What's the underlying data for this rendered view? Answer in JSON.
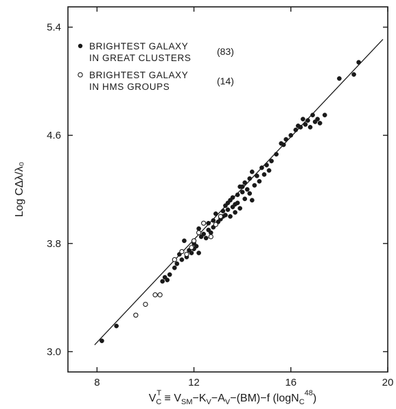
{
  "chart_data": {
    "type": "scatter",
    "title": "",
    "xlabel": "V_C^T ≡ V_SM−K_V−A_V−(BM)−f(logN_C^48)",
    "xlabel_parts": {
      "main": "V",
      "main_sub": "C",
      "main_sup": "T",
      "rest1": " ≡ V",
      "rest1_sub": "SM",
      "rest2": "−K",
      "rest2_sub": "V",
      "rest3": "−A",
      "rest3_sub": "V",
      "rest4": "−(BM)−f (logN",
      "rest4_sub": "C",
      "rest4_sup": "48",
      "rest5": ")"
    },
    "ylabel": "Log CΔλ/λ₀",
    "xlim": [
      6.8,
      20
    ],
    "ylim": [
      2.85,
      5.55
    ],
    "xticks": [
      {
        "value": 8,
        "label": "8"
      },
      {
        "value": 12,
        "label": "12"
      },
      {
        "value": 16,
        "label": "16"
      },
      {
        "value": 20,
        "label": "20"
      }
    ],
    "yticks": [
      {
        "value": 3.0,
        "label": "3.0"
      },
      {
        "value": 3.8,
        "label": "3.8"
      },
      {
        "value": 4.6,
        "label": "4.6"
      },
      {
        "value": 5.4,
        "label": "5.4"
      }
    ],
    "grid": false,
    "legend_position": "top-left",
    "legend": [
      {
        "marker": "filled-circle",
        "line1": "BRIGHTEST GALAXY",
        "line2": "IN GREAT CLUSTERS",
        "count": "(83)"
      },
      {
        "marker": "open-circle",
        "line1": "BRIGHTEST GALAXY",
        "line2": "IN HMS GROUPS",
        "count": "(14)"
      }
    ],
    "fit_line": {
      "x": [
        7.9,
        19.8
      ],
      "y": [
        3.05,
        5.31
      ]
    },
    "series": [
      {
        "marker": "filled-circle",
        "points": [
          [
            8.2,
            3.08
          ],
          [
            8.8,
            3.19
          ],
          [
            10.7,
            3.52
          ],
          [
            10.8,
            3.55
          ],
          [
            10.9,
            3.53
          ],
          [
            11.0,
            3.57
          ],
          [
            11.2,
            3.62
          ],
          [
            11.3,
            3.65
          ],
          [
            11.4,
            3.72
          ],
          [
            11.5,
            3.68
          ],
          [
            11.6,
            3.82
          ],
          [
            11.7,
            3.7
          ],
          [
            11.8,
            3.75
          ],
          [
            11.9,
            3.73
          ],
          [
            12.0,
            3.8
          ],
          [
            12.0,
            3.76
          ],
          [
            12.1,
            3.78
          ],
          [
            12.2,
            3.73
          ],
          [
            12.3,
            3.85
          ],
          [
            12.4,
            3.87
          ],
          [
            12.5,
            3.84
          ],
          [
            12.6,
            3.9
          ],
          [
            12.6,
            3.95
          ],
          [
            12.7,
            3.88
          ],
          [
            12.8,
            3.92
          ],
          [
            12.9,
            4.02
          ],
          [
            12.8,
            3.97
          ],
          [
            13.0,
            3.96
          ],
          [
            13.1,
            3.98
          ],
          [
            13.2,
            4.0
          ],
          [
            13.2,
            4.04
          ],
          [
            13.3,
            4.01
          ],
          [
            13.3,
            4.08
          ],
          [
            13.4,
            4.05
          ],
          [
            13.4,
            4.1
          ],
          [
            13.5,
            4.12
          ],
          [
            13.5,
            4.0
          ],
          [
            13.6,
            4.07
          ],
          [
            13.6,
            4.14
          ],
          [
            13.7,
            4.09
          ],
          [
            13.7,
            4.03
          ],
          [
            13.8,
            4.16
          ],
          [
            13.8,
            4.1
          ],
          [
            13.9,
            4.06
          ],
          [
            14.0,
            4.18
          ],
          [
            14.0,
            4.22
          ],
          [
            14.1,
            4.13
          ],
          [
            14.1,
            4.25
          ],
          [
            14.2,
            4.2
          ],
          [
            14.3,
            4.17
          ],
          [
            14.3,
            4.28
          ],
          [
            14.4,
            4.12
          ],
          [
            14.4,
            4.33
          ],
          [
            14.5,
            4.23
          ],
          [
            14.6,
            4.3
          ],
          [
            14.7,
            4.26
          ],
          [
            14.8,
            4.36
          ],
          [
            14.9,
            4.31
          ],
          [
            15.0,
            4.38
          ],
          [
            15.1,
            4.34
          ],
          [
            15.2,
            4.41
          ],
          [
            15.4,
            4.46
          ],
          [
            15.6,
            4.54
          ],
          [
            15.7,
            4.53
          ],
          [
            15.8,
            4.57
          ],
          [
            16.0,
            4.6
          ],
          [
            16.2,
            4.64
          ],
          [
            16.3,
            4.67
          ],
          [
            16.4,
            4.66
          ],
          [
            16.5,
            4.72
          ],
          [
            16.6,
            4.68
          ],
          [
            16.7,
            4.71
          ],
          [
            16.8,
            4.66
          ],
          [
            16.9,
            4.75
          ],
          [
            17.0,
            4.7
          ],
          [
            17.1,
            4.72
          ],
          [
            17.2,
            4.69
          ],
          [
            17.4,
            4.75
          ],
          [
            18.0,
            5.02
          ],
          [
            18.6,
            5.05
          ],
          [
            18.8,
            5.14
          ],
          [
            12.2,
            3.91
          ],
          [
            13.9,
            4.22
          ]
        ]
      },
      {
        "marker": "open-circle",
        "points": [
          [
            9.6,
            3.27
          ],
          [
            10.0,
            3.35
          ],
          [
            10.4,
            3.42
          ],
          [
            10.6,
            3.42
          ],
          [
            11.2,
            3.68
          ],
          [
            11.5,
            3.74
          ],
          [
            11.7,
            3.72
          ],
          [
            11.9,
            3.77
          ],
          [
            12.0,
            3.82
          ],
          [
            12.2,
            3.88
          ],
          [
            12.4,
            3.95
          ],
          [
            12.7,
            3.85
          ],
          [
            12.9,
            3.94
          ],
          [
            13.1,
            4.0
          ]
        ]
      }
    ]
  }
}
